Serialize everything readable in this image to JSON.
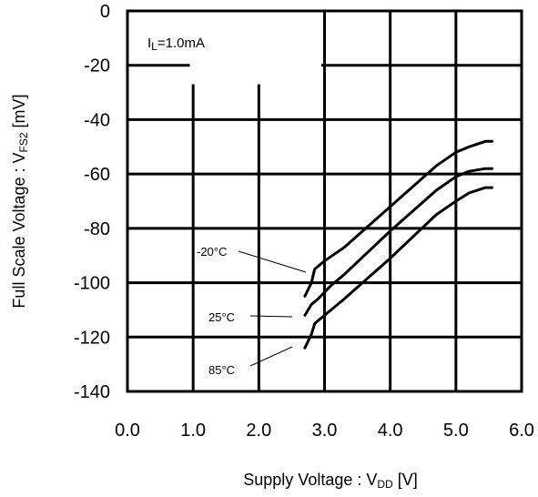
{
  "chart_data": {
    "type": "line",
    "xlabel": {
      "main": "Supply Voltage : V",
      "sub": "DD",
      "unit": " [V]"
    },
    "ylabel": {
      "main": "Full Scale Voltage : V",
      "sub": "FS2",
      "unit": " [mV]"
    },
    "xlim": [
      0.0,
      6.0
    ],
    "ylim": [
      -140,
      0
    ],
    "xticks": [
      "0.0",
      "1.0",
      "2.0",
      "3.0",
      "4.0",
      "5.0",
      "6.0"
    ],
    "yticks": [
      "0",
      "-20",
      "-40",
      "-60",
      "-80",
      "-100",
      "-120",
      "-140"
    ],
    "grid": true,
    "condition": {
      "main": "I",
      "sub": "L",
      "rest": "=1.0mA"
    },
    "series": [
      {
        "name": "-20°C",
        "x": [
          2.7,
          2.8,
          2.85,
          3.0,
          3.3,
          4.0,
          4.7,
          5.0,
          5.2,
          5.45,
          5.55
        ],
        "y": [
          -105,
          -100,
          -95,
          -92,
          -87,
          -72,
          -57,
          -52,
          -50,
          -48,
          -48
        ]
      },
      {
        "name": "25°C",
        "x": [
          2.7,
          2.8,
          2.9,
          3.1,
          3.3,
          4.0,
          4.7,
          5.0,
          5.2,
          5.45,
          5.55
        ],
        "y": [
          -112,
          -108,
          -106,
          -101,
          -97,
          -81,
          -66,
          -61,
          -59,
          -58,
          -58
        ]
      },
      {
        "name": "85°C",
        "x": [
          2.7,
          2.8,
          2.85,
          3.0,
          3.3,
          4.0,
          4.7,
          5.0,
          5.2,
          5.45,
          5.55
        ],
        "y": [
          -124,
          -119,
          -115,
          -112,
          -106,
          -91,
          -75,
          -70,
          -67,
          -65,
          -65
        ]
      }
    ]
  }
}
